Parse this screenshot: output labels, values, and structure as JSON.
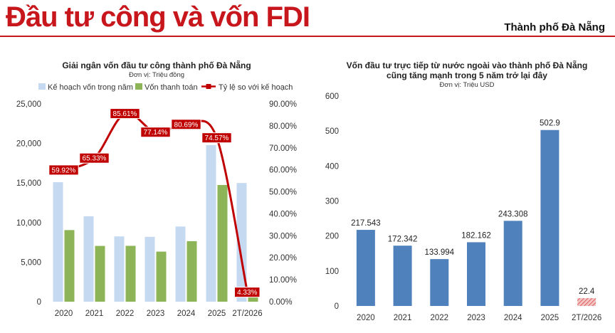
{
  "header": {
    "title": "Đầu tư công và vốn FDI",
    "city": "Thành phố Đà Nẵng"
  },
  "colors": {
    "brand_red": "#c8161d",
    "plan_bar": "#c5d9f0",
    "paid_bar": "#8db456",
    "rate_line": "#c00000",
    "fdi_bar": "#4f81bd",
    "fdi_partial": "#e06060"
  },
  "chart_data": [
    {
      "type": "bar",
      "title": "Giải ngân vốn đầu tư công thành phố Đà Nẵng",
      "unit": "Đơn vị: Triệu đồng",
      "categories": [
        "2020",
        "2021",
        "2022",
        "2023",
        "2024",
        "2025",
        "2T/2026"
      ],
      "series": [
        {
          "name": "Kế hoạch vốn trong năm",
          "type": "bar",
          "values": [
            15100,
            10800,
            8250,
            8200,
            9500,
            19800,
            15000
          ]
        },
        {
          "name": "Vốn thanh toán",
          "type": "bar",
          "values": [
            9050,
            7050,
            7060,
            6330,
            7650,
            14750,
            650
          ]
        },
        {
          "name": "Tỷ lệ so với kế hoạch",
          "type": "line",
          "axis": "right",
          "values": [
            59.92,
            65.33,
            85.61,
            77.14,
            80.69,
            74.57,
            4.33
          ],
          "labels": [
            "59.92%",
            "65.33%",
            "85.61%",
            "77.14%",
            "80.69%",
            "74.57%",
            "4.33%"
          ]
        }
      ],
      "ylim": [
        0,
        25000
      ],
      "yticks": [
        0,
        5000,
        10000,
        15000,
        20000,
        25000
      ],
      "ytick_labels": [
        "0",
        "5,000",
        "10,000",
        "15,000",
        "20,000",
        "25,000"
      ],
      "y2lim": [
        0,
        90
      ],
      "y2ticks": [
        0,
        10,
        20,
        30,
        40,
        50,
        60,
        70,
        80,
        90
      ],
      "y2tick_labels": [
        "0.00%",
        "10.00%",
        "20.00%",
        "30.00%",
        "40.00%",
        "50.00%",
        "60.00%",
        "70.00%",
        "80.00%",
        "90.00%"
      ],
      "legend": "top"
    },
    {
      "type": "bar",
      "title_lines": [
        "Vốn đầu tư trực tiếp từ nước ngoài vào thành phố Đà Nẵng",
        "cũng tăng mạnh trong 5 năm trở lại đây"
      ],
      "unit": "Đơn vị: Triệu USD",
      "categories": [
        "2020",
        "2021",
        "2022",
        "2023",
        "2024",
        "2025",
        "2T/2026"
      ],
      "values": [
        217.543,
        172.342,
        133.994,
        182.162,
        243.308,
        502.9,
        22.4
      ],
      "value_labels": [
        "217.543",
        "172.342",
        "133.994",
        "182.162",
        "243.308",
        "502.9",
        "22.4"
      ],
      "ylim": [
        0,
        600
      ],
      "yticks": [
        0,
        100,
        200,
        300,
        400,
        500,
        600
      ],
      "ytick_labels": [
        "0",
        "100",
        "200",
        "300",
        "400",
        "500",
        "600"
      ]
    }
  ]
}
